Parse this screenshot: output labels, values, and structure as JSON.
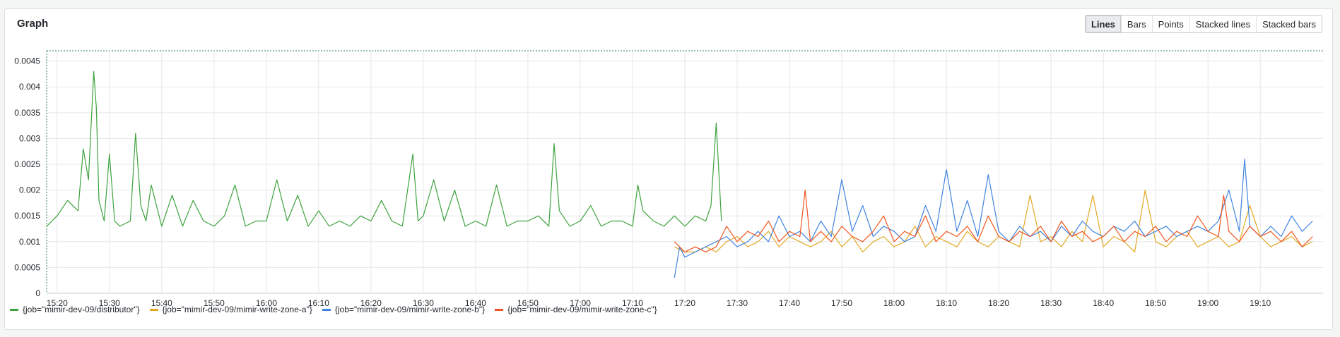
{
  "panel": {
    "title": "Graph"
  },
  "modes": [
    {
      "label": "Lines",
      "active": true
    },
    {
      "label": "Bars",
      "active": false
    },
    {
      "label": "Points",
      "active": false
    },
    {
      "label": "Stacked lines",
      "active": false
    },
    {
      "label": "Stacked bars",
      "active": false
    }
  ],
  "chart_data": {
    "type": "line",
    "title": "",
    "xlabel": "",
    "ylabel": "",
    "xlim": [
      "15:18",
      "19:22"
    ],
    "ylim": [
      0,
      0.0047
    ],
    "x_ticks": [
      "15:20",
      "15:30",
      "15:40",
      "15:50",
      "16:00",
      "16:10",
      "16:20",
      "16:30",
      "16:40",
      "16:50",
      "17:00",
      "17:10",
      "17:20",
      "17:30",
      "17:40",
      "17:50",
      "18:00",
      "18:10",
      "18:20",
      "18:30",
      "18:40",
      "18:50",
      "19:00",
      "19:10"
    ],
    "y_ticks": [
      "0",
      "0.0005",
      "0.001",
      "0.0015",
      "0.002",
      "0.0025",
      "0.003",
      "0.0035",
      "0.004",
      "0.0045"
    ],
    "grid": true,
    "legend_position": "bottom-left",
    "series": [
      {
        "name": "{job=\"mimir-dev-09/distributor\"}",
        "color": "#3ea33e",
        "x": [
          "15:18",
          "15:20",
          "15:22",
          "15:24",
          "15:25",
          "15:26",
          "15:27",
          "15:27.5",
          "15:28",
          "15:29",
          "15:30",
          "15:31",
          "15:32",
          "15:34",
          "15:35",
          "15:36",
          "15:37",
          "15:38",
          "15:40",
          "15:42",
          "15:44",
          "15:46",
          "15:48",
          "15:50",
          "15:52",
          "15:54",
          "15:56",
          "15:58",
          "16:00",
          "16:02",
          "16:04",
          "16:06",
          "16:08",
          "16:10",
          "16:12",
          "16:14",
          "16:16",
          "16:18",
          "16:20",
          "16:22",
          "16:24",
          "16:26",
          "16:28",
          "16:29",
          "16:30",
          "16:32",
          "16:34",
          "16:36",
          "16:38",
          "16:40",
          "16:42",
          "16:44",
          "16:46",
          "16:48",
          "16:50",
          "16:52",
          "16:54",
          "16:55",
          "16:56",
          "16:58",
          "17:00",
          "17:02",
          "17:04",
          "17:06",
          "17:08",
          "17:10",
          "17:11",
          "17:12",
          "17:13",
          "17:14",
          "17:16",
          "17:18",
          "17:20",
          "17:22",
          "17:24",
          "17:25",
          "17:26",
          "17:27"
        ],
        "y": [
          0.0013,
          0.0015,
          0.0018,
          0.0016,
          0.0028,
          0.0022,
          0.0043,
          0.0036,
          0.0018,
          0.0014,
          0.0027,
          0.0014,
          0.0013,
          0.0014,
          0.0031,
          0.0017,
          0.0014,
          0.0021,
          0.0013,
          0.0019,
          0.0013,
          0.0018,
          0.0014,
          0.0013,
          0.0015,
          0.0021,
          0.0013,
          0.0014,
          0.0014,
          0.0022,
          0.0014,
          0.0019,
          0.0013,
          0.0016,
          0.0013,
          0.0014,
          0.0013,
          0.0015,
          0.0014,
          0.0018,
          0.0014,
          0.0013,
          0.0027,
          0.0014,
          0.0015,
          0.0022,
          0.0014,
          0.002,
          0.0013,
          0.0014,
          0.0013,
          0.0021,
          0.0013,
          0.0014,
          0.0014,
          0.0015,
          0.0013,
          0.0029,
          0.0016,
          0.0013,
          0.0014,
          0.0017,
          0.0013,
          0.0014,
          0.0014,
          0.0013,
          0.0021,
          0.0016,
          0.0015,
          0.0014,
          0.0013,
          0.0015,
          0.0013,
          0.0015,
          0.0014,
          0.0017,
          0.0033,
          0.0014
        ]
      },
      {
        "name": "{job=\"mimir-dev-09/mimir-write-zone-a\"}",
        "color": "#e3a924",
        "x": [
          "17:18",
          "17:20",
          "17:22",
          "17:24",
          "17:26",
          "17:28",
          "17:30",
          "17:32",
          "17:34",
          "17:36",
          "17:38",
          "17:40",
          "17:42",
          "17:44",
          "17:46",
          "17:48",
          "17:50",
          "17:52",
          "17:54",
          "17:56",
          "17:58",
          "18:00",
          "18:02",
          "18:04",
          "18:06",
          "18:08",
          "18:10",
          "18:12",
          "18:14",
          "18:16",
          "18:18",
          "18:20",
          "18:22",
          "18:24",
          "18:26",
          "18:28",
          "18:30",
          "18:32",
          "18:34",
          "18:36",
          "18:38",
          "18:40",
          "18:42",
          "18:44",
          "18:46",
          "18:48",
          "18:50",
          "18:52",
          "18:54",
          "18:56",
          "18:58",
          "19:00",
          "19:02",
          "19:04",
          "19:06",
          "19:08",
          "19:10",
          "19:12",
          "19:14",
          "19:16",
          "19:18",
          "19:20"
        ],
        "y": [
          0.0009,
          0.0008,
          0.0008,
          0.0009,
          0.0008,
          0.001,
          0.0011,
          0.0009,
          0.001,
          0.0012,
          0.0009,
          0.0011,
          0.001,
          0.0009,
          0.001,
          0.0012,
          0.0009,
          0.0011,
          0.0008,
          0.001,
          0.0011,
          0.0009,
          0.001,
          0.0013,
          0.0009,
          0.0011,
          0.001,
          0.0009,
          0.0012,
          0.001,
          0.0009,
          0.0011,
          0.001,
          0.0009,
          0.0019,
          0.001,
          0.0011,
          0.0009,
          0.0012,
          0.001,
          0.0019,
          0.0009,
          0.0011,
          0.001,
          0.0008,
          0.002,
          0.001,
          0.0009,
          0.0011,
          0.0012,
          0.0009,
          0.001,
          0.0011,
          0.0009,
          0.001,
          0.0017,
          0.0011,
          0.0009,
          0.001,
          0.0011,
          0.0009,
          0.001
        ]
      },
      {
        "name": "{job=\"mimir-dev-09/mimir-write-zone-b\"}",
        "color": "#3f83e0",
        "x": [
          "17:18",
          "17:19",
          "17:20",
          "17:22",
          "17:24",
          "17:26",
          "17:28",
          "17:30",
          "17:32",
          "17:34",
          "17:36",
          "17:38",
          "17:40",
          "17:42",
          "17:44",
          "17:46",
          "17:48",
          "17:50",
          "17:52",
          "17:54",
          "17:56",
          "17:58",
          "18:00",
          "18:02",
          "18:04",
          "18:06",
          "18:08",
          "18:10",
          "18:12",
          "18:14",
          "18:16",
          "18:18",
          "18:20",
          "18:22",
          "18:24",
          "18:26",
          "18:28",
          "18:30",
          "18:32",
          "18:34",
          "18:36",
          "18:38",
          "18:40",
          "18:42",
          "18:44",
          "18:46",
          "18:48",
          "18:50",
          "18:52",
          "18:54",
          "18:56",
          "18:58",
          "19:00",
          "19:02",
          "19:04",
          "19:06",
          "19:07",
          "19:08",
          "19:10",
          "19:12",
          "19:14",
          "19:16",
          "19:18",
          "19:20"
        ],
        "y": [
          0.0003,
          0.0009,
          0.0007,
          0.0008,
          0.0009,
          0.001,
          0.0011,
          0.0009,
          0.001,
          0.0012,
          0.001,
          0.0015,
          0.0011,
          0.0012,
          0.001,
          0.0014,
          0.0011,
          0.0022,
          0.0012,
          0.0017,
          0.0011,
          0.0013,
          0.0012,
          0.001,
          0.0011,
          0.0017,
          0.0012,
          0.0024,
          0.0012,
          0.0018,
          0.0011,
          0.0023,
          0.0012,
          0.001,
          0.0013,
          0.0011,
          0.0012,
          0.001,
          0.0013,
          0.0011,
          0.0014,
          0.0012,
          0.0011,
          0.0013,
          0.0012,
          0.0014,
          0.0011,
          0.0012,
          0.0013,
          0.0011,
          0.0012,
          0.0013,
          0.0012,
          0.0014,
          0.002,
          0.0012,
          0.0026,
          0.0013,
          0.0011,
          0.0013,
          0.0011,
          0.0015,
          0.0012,
          0.0014
        ]
      },
      {
        "name": "{job=\"mimir-dev-09/mimir-write-zone-c\"}",
        "color": "#f2551e",
        "x": [
          "17:18",
          "17:20",
          "17:22",
          "17:24",
          "17:26",
          "17:28",
          "17:30",
          "17:32",
          "17:34",
          "17:36",
          "17:38",
          "17:40",
          "17:42",
          "17:43",
          "17:44",
          "17:46",
          "17:48",
          "17:50",
          "17:52",
          "17:54",
          "17:56",
          "17:58",
          "18:00",
          "18:02",
          "18:04",
          "18:06",
          "18:08",
          "18:10",
          "18:12",
          "18:14",
          "18:16",
          "18:18",
          "18:20",
          "18:22",
          "18:24",
          "18:26",
          "18:28",
          "18:30",
          "18:32",
          "18:34",
          "18:36",
          "18:38",
          "18:40",
          "18:42",
          "18:44",
          "18:46",
          "18:48",
          "18:50",
          "18:52",
          "18:54",
          "18:56",
          "18:58",
          "19:00",
          "19:02",
          "19:03",
          "19:04",
          "19:06",
          "19:08",
          "19:10",
          "19:12",
          "19:14",
          "19:16",
          "19:18",
          "19:20"
        ],
        "y": [
          0.001,
          0.0008,
          0.0009,
          0.0008,
          0.0009,
          0.0013,
          0.001,
          0.0012,
          0.0011,
          0.0014,
          0.001,
          0.0012,
          0.0011,
          0.002,
          0.001,
          0.0012,
          0.001,
          0.0013,
          0.0011,
          0.001,
          0.0012,
          0.0015,
          0.001,
          0.0012,
          0.0011,
          0.0015,
          0.001,
          0.0012,
          0.0011,
          0.0013,
          0.001,
          0.0015,
          0.0011,
          0.001,
          0.0012,
          0.0011,
          0.0013,
          0.001,
          0.0014,
          0.0011,
          0.0012,
          0.001,
          0.0011,
          0.0013,
          0.001,
          0.0012,
          0.0011,
          0.0013,
          0.001,
          0.0012,
          0.0011,
          0.0015,
          0.0012,
          0.0011,
          0.0019,
          0.0012,
          0.001,
          0.0013,
          0.0011,
          0.0012,
          0.001,
          0.0012,
          0.0009,
          0.0011
        ]
      }
    ]
  }
}
